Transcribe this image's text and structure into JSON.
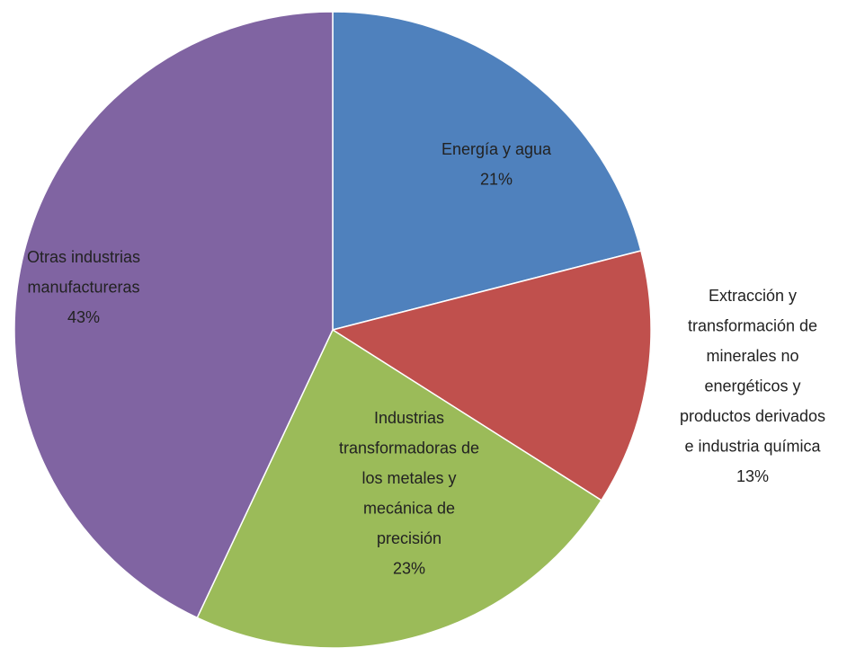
{
  "chart_data": {
    "type": "pie",
    "categories": [
      "Energía y agua",
      "Extracción y transformación de minerales no energéticos y productos derivados e industria química",
      "Industrias transformadoras de los metales y mecánica de precisión",
      "Otras industrias manufactureras"
    ],
    "values": [
      21,
      13,
      23,
      43
    ],
    "value_labels": [
      "21%",
      "13%",
      "23%",
      "43%"
    ],
    "colors": [
      "#4f81bd",
      "#c0504d",
      "#9bbb59",
      "#8064a2"
    ]
  }
}
